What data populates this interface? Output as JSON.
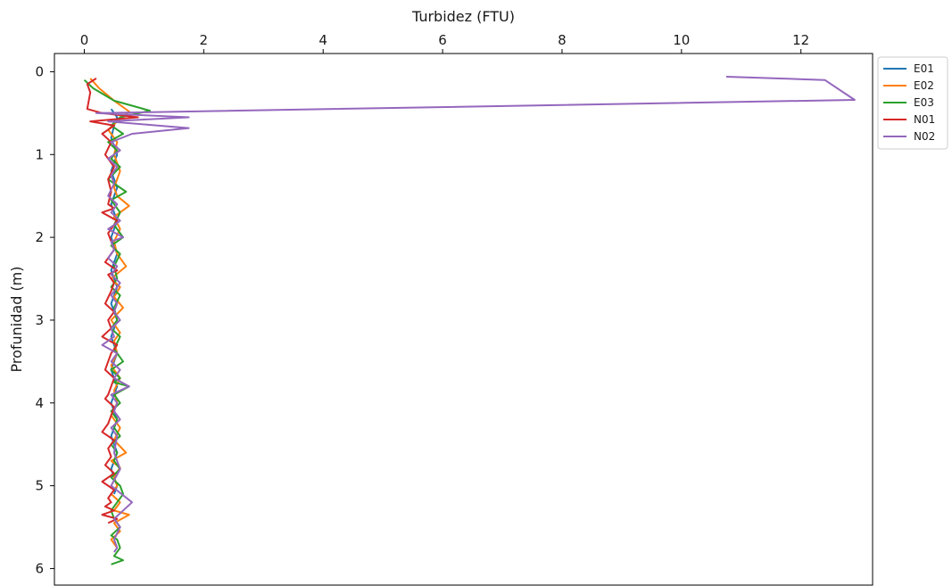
{
  "chart_data": {
    "type": "line",
    "title": "",
    "xlabel": "Turbidez (FTU)",
    "ylabel": "Profunidad (m)",
    "x_axis_position": "top",
    "y_inverted": true,
    "xlim": [
      -0.5,
      13.2
    ],
    "ylim": [
      6.2,
      -0.22
    ],
    "xticks": [
      0,
      2,
      4,
      6,
      8,
      10,
      12
    ],
    "yticks": [
      0,
      1,
      2,
      3,
      4,
      5,
      6
    ],
    "grid": false,
    "legend_position": "outside-top-right",
    "series": [
      {
        "name": "E01",
        "color": "#1f77b4",
        "x": [
          0.45,
          0.55,
          0.5,
          0.45,
          0.5,
          0.55,
          0.5,
          0.45,
          0.5,
          0.55,
          0.5,
          0.45,
          0.5,
          0.55,
          0.5,
          0.45,
          0.5,
          0.55,
          0.5,
          0.45,
          0.5,
          0.55,
          0.5,
          0.45,
          0.5,
          0.55,
          0.5,
          0.45,
          0.5,
          0.55,
          0.5,
          0.45,
          0.5,
          0.55,
          0.5,
          0.45,
          0.5,
          0.55,
          0.5,
          0.45,
          0.5,
          0.55,
          0.5,
          0.45,
          0.5,
          0.55,
          0.5
        ],
        "y": [
          0.45,
          0.55,
          0.65,
          0.8,
          0.9,
          1.0,
          1.1,
          1.2,
          1.3,
          1.4,
          1.5,
          1.6,
          1.7,
          1.8,
          1.9,
          2.0,
          2.1,
          2.2,
          2.3,
          2.4,
          2.5,
          2.6,
          2.7,
          2.8,
          2.9,
          3.0,
          3.1,
          3.2,
          3.3,
          3.4,
          3.5,
          3.6,
          3.7,
          3.8,
          3.9,
          4.0,
          4.1,
          4.2,
          4.3,
          4.4,
          4.5,
          4.6,
          4.7,
          4.8,
          4.9,
          5.0,
          5.1
        ]
      },
      {
        "name": "E02",
        "color": "#ff7f0e",
        "x": [
          0.1,
          0.25,
          0.5,
          0.75,
          0.55,
          0.4,
          0.55,
          0.5,
          0.6,
          0.5,
          0.55,
          0.75,
          0.5,
          0.6,
          0.5,
          0.55,
          0.7,
          0.45,
          0.6,
          0.5,
          0.65,
          0.45,
          0.6,
          0.5,
          0.55,
          0.45,
          0.6,
          0.5,
          0.55,
          0.45,
          0.6,
          0.5,
          0.7,
          0.45,
          0.6,
          0.5,
          0.55,
          0.45,
          0.6,
          0.5,
          0.75,
          0.5,
          0.6,
          0.45,
          0.55
        ],
        "y": [
          0.08,
          0.2,
          0.35,
          0.48,
          0.6,
          0.7,
          0.85,
          1.0,
          1.2,
          1.4,
          1.5,
          1.62,
          1.75,
          1.9,
          2.05,
          2.2,
          2.35,
          2.5,
          2.6,
          2.72,
          2.85,
          3.0,
          3.15,
          3.25,
          3.4,
          3.55,
          3.7,
          3.85,
          4.0,
          4.15,
          4.3,
          4.45,
          4.6,
          4.7,
          4.78,
          4.9,
          5.0,
          5.1,
          5.2,
          5.3,
          5.35,
          5.45,
          5.55,
          5.65,
          5.75
        ]
      },
      {
        "name": "E03",
        "color": "#2ca02c",
        "x": [
          0.0,
          0.15,
          0.5,
          1.1,
          0.6,
          0.45,
          0.65,
          0.4,
          0.55,
          0.45,
          0.6,
          0.4,
          0.7,
          0.45,
          0.6,
          0.5,
          0.65,
          0.45,
          0.6,
          0.5,
          0.55,
          0.45,
          0.6,
          0.5,
          0.55,
          0.45,
          0.6,
          0.5,
          0.65,
          0.45,
          0.6,
          0.5,
          0.75,
          0.5,
          0.6,
          0.45,
          0.55,
          0.5,
          0.6,
          0.45,
          0.55,
          0.5,
          0.6,
          0.45,
          0.6,
          0.65,
          0.55,
          0.45,
          0.5,
          0.6,
          0.45,
          0.55,
          0.6,
          0.5,
          0.65,
          0.45
        ],
        "y": [
          0.1,
          0.2,
          0.35,
          0.47,
          0.55,
          0.65,
          0.75,
          0.85,
          0.95,
          1.05,
          1.15,
          1.3,
          1.45,
          1.55,
          1.7,
          1.85,
          2.0,
          2.1,
          2.2,
          2.35,
          2.5,
          2.6,
          2.7,
          2.85,
          3.0,
          3.1,
          3.2,
          3.35,
          3.5,
          3.6,
          3.7,
          3.75,
          3.8,
          3.9,
          4.0,
          4.1,
          4.2,
          4.3,
          4.4,
          4.5,
          4.6,
          4.7,
          4.8,
          4.9,
          5.0,
          5.1,
          5.2,
          5.3,
          5.4,
          5.5,
          5.6,
          5.65,
          5.75,
          5.85,
          5.9,
          5.95
        ]
      },
      {
        "name": "N01",
        "color": "#d62728",
        "x": [
          0.2,
          0.05,
          0.1,
          0.05,
          0.3,
          0.9,
          0.1,
          0.5,
          0.3,
          0.45,
          0.35,
          0.5,
          0.4,
          0.45,
          0.4,
          0.5,
          0.3,
          0.55,
          0.4,
          0.45,
          0.5,
          0.35,
          0.55,
          0.4,
          0.5,
          0.45,
          0.35,
          0.5,
          0.4,
          0.45,
          0.3,
          0.55,
          0.45,
          0.4,
          0.35,
          0.5,
          0.45,
          0.4,
          0.35,
          0.5,
          0.45,
          0.4,
          0.3,
          0.5,
          0.4,
          0.45,
          0.35,
          0.5,
          0.3,
          0.5,
          0.4,
          0.45,
          0.35,
          0.5,
          0.3,
          0.55,
          0.4
        ],
        "y": [
          0.08,
          0.15,
          0.25,
          0.45,
          0.5,
          0.55,
          0.6,
          0.65,
          0.75,
          0.85,
          1.0,
          1.15,
          1.3,
          1.45,
          1.6,
          1.65,
          1.7,
          1.8,
          1.95,
          2.05,
          2.15,
          2.3,
          2.4,
          2.45,
          2.55,
          2.65,
          2.8,
          2.9,
          3.0,
          3.1,
          3.2,
          3.3,
          3.4,
          3.5,
          3.6,
          3.7,
          3.8,
          3.9,
          3.95,
          4.05,
          4.15,
          4.25,
          4.35,
          4.45,
          4.55,
          4.65,
          4.75,
          4.85,
          4.95,
          5.05,
          5.15,
          5.2,
          5.25,
          5.3,
          5.35,
          5.4,
          5.45
        ]
      },
      {
        "name": "N02",
        "color": "#9467bd",
        "x": [
          10.75,
          12.4,
          12.9,
          0.2,
          1.75,
          0.4,
          1.75,
          0.8,
          0.45,
          0.6,
          0.4,
          0.55,
          0.45,
          0.5,
          0.4,
          0.55,
          0.45,
          0.6,
          0.4,
          0.65,
          0.45,
          0.5,
          0.4,
          0.55,
          0.45,
          0.6,
          0.45,
          0.55,
          0.5,
          0.6,
          0.45,
          0.5,
          0.3,
          0.55,
          0.45,
          0.6,
          0.5,
          0.75,
          0.45,
          0.55,
          0.5,
          0.6,
          0.45,
          0.55,
          0.5,
          0.6,
          0.45,
          0.8,
          0.5,
          0.6,
          0.5,
          0.55,
          0.5
        ],
        "y": [
          0.06,
          0.1,
          0.34,
          0.5,
          0.55,
          0.6,
          0.68,
          0.75,
          0.85,
          0.95,
          1.05,
          1.15,
          1.25,
          1.35,
          1.5,
          1.6,
          1.7,
          1.8,
          1.9,
          2.0,
          2.05,
          2.15,
          2.25,
          2.35,
          2.45,
          2.55,
          2.7,
          2.8,
          2.9,
          3.0,
          3.1,
          3.2,
          3.3,
          3.4,
          3.5,
          3.6,
          3.7,
          3.8,
          3.9,
          4.0,
          4.1,
          4.2,
          4.3,
          4.4,
          4.6,
          4.8,
          5.0,
          5.2,
          5.4,
          5.5,
          5.65,
          5.75,
          5.8
        ]
      }
    ]
  }
}
